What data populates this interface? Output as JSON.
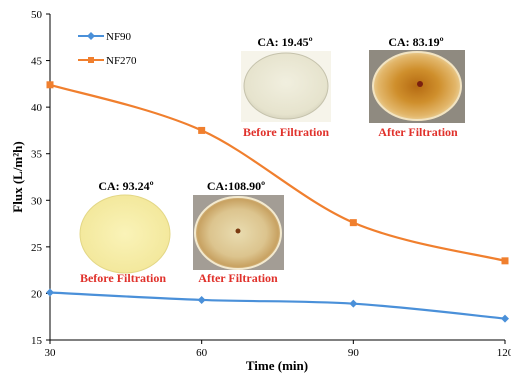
{
  "chart_data": {
    "type": "line",
    "x": [
      30,
      60,
      90,
      120
    ],
    "xlabel": "Time (min)",
    "ylabel": "Flux (L/m²h)",
    "xlim": [
      30,
      120
    ],
    "ylim": [
      15,
      50
    ],
    "xticks": [
      "30",
      "60",
      "90",
      "120"
    ],
    "yticks": [
      "15",
      "20",
      "25",
      "30",
      "35",
      "40",
      "45",
      "50"
    ],
    "grid": false,
    "legend_position": "top-left",
    "series": [
      {
        "name": "NF90",
        "color": "#4a90d9",
        "marker": "diamond",
        "values": [
          20.1,
          19.3,
          18.9,
          17.3
        ]
      },
      {
        "name": "NF270",
        "color": "#f07f2e",
        "marker": "square",
        "values": [
          42.4,
          37.5,
          27.6,
          23.5
        ]
      }
    ],
    "annotations": {
      "nf270_before_ca": "CA: 19.45º",
      "nf270_after_ca": "CA: 83.19º",
      "nf90_before_ca": "CA: 93.24º",
      "nf90_after_ca": "CA:108.90º",
      "before_label": "Before Filtration",
      "after_label": "After Filtration",
      "annotation_color": "#e0312b"
    }
  }
}
